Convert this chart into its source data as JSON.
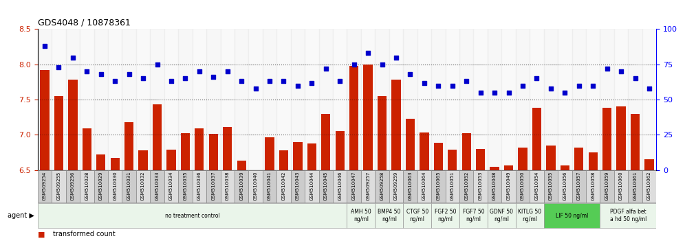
{
  "title": "GDS4048 / 10878361",
  "samples": [
    "GSM509254",
    "GSM509255",
    "GSM509256",
    "GSM510028",
    "GSM510029",
    "GSM510030",
    "GSM510031",
    "GSM510032",
    "GSM510033",
    "GSM510034",
    "GSM510035",
    "GSM510036",
    "GSM510037",
    "GSM510038",
    "GSM510039",
    "GSM510040",
    "GSM510041",
    "GSM510042",
    "GSM510043",
    "GSM510044",
    "GSM510045",
    "GSM510046",
    "GSM510047",
    "GSM509257",
    "GSM509258",
    "GSM509259",
    "GSM510063",
    "GSM510064",
    "GSM510065",
    "GSM510051",
    "GSM510052",
    "GSM510053",
    "GSM510048",
    "GSM510049",
    "GSM510050",
    "GSM510054",
    "GSM510055",
    "GSM510056",
    "GSM510057",
    "GSM510058",
    "GSM510059",
    "GSM510060",
    "GSM510061",
    "GSM510062"
  ],
  "bar_values": [
    7.92,
    7.55,
    7.78,
    7.09,
    6.72,
    6.67,
    7.18,
    6.78,
    7.43,
    6.79,
    7.02,
    7.09,
    7.01,
    7.11,
    6.63,
    6.5,
    6.97,
    6.78,
    6.9,
    6.88,
    7.3,
    7.05,
    7.98,
    8.0,
    7.55,
    7.78,
    7.23,
    7.03,
    6.89,
    6.79,
    7.02,
    6.8,
    6.55,
    6.57,
    6.82,
    7.38,
    6.85,
    6.57,
    6.82,
    6.75,
    7.38,
    7.4,
    7.3,
    6.65
  ],
  "percentile_values": [
    88,
    73,
    80,
    70,
    68,
    63,
    68,
    65,
    75,
    63,
    65,
    70,
    66,
    70,
    63,
    58,
    63,
    63,
    60,
    62,
    72,
    63,
    75,
    83,
    75,
    80,
    68,
    62,
    60,
    60,
    63,
    55,
    55,
    55,
    60,
    65,
    58,
    55,
    60,
    60,
    72,
    70,
    65,
    58
  ],
  "ylim_left": [
    6.5,
    8.5
  ],
  "ylim_right": [
    0,
    100
  ],
  "yticks_left": [
    6.5,
    7.0,
    7.5,
    8.0,
    8.5
  ],
  "yticks_right": [
    0,
    25,
    50,
    75,
    100
  ],
  "bar_color": "#cc2200",
  "dot_color": "#0000cc",
  "agent_groups": [
    {
      "label": "no treatment control",
      "start": 0,
      "end": 22,
      "bg": "#eaf5ea",
      "border": "#999999"
    },
    {
      "label": "AMH 50\nng/ml",
      "start": 22,
      "end": 24,
      "bg": "#eaf5ea",
      "border": "#999999"
    },
    {
      "label": "BMP4 50\nng/ml",
      "start": 24,
      "end": 26,
      "bg": "#eaf5ea",
      "border": "#999999"
    },
    {
      "label": "CTGF 50\nng/ml",
      "start": 26,
      "end": 28,
      "bg": "#eaf5ea",
      "border": "#999999"
    },
    {
      "label": "FGF2 50\nng/ml",
      "start": 28,
      "end": 30,
      "bg": "#eaf5ea",
      "border": "#999999"
    },
    {
      "label": "FGF7 50\nng/ml",
      "start": 30,
      "end": 32,
      "bg": "#eaf5ea",
      "border": "#999999"
    },
    {
      "label": "GDNF 50\nng/ml",
      "start": 32,
      "end": 34,
      "bg": "#eaf5ea",
      "border": "#999999"
    },
    {
      "label": "KITLG 50\nng/ml",
      "start": 34,
      "end": 36,
      "bg": "#eaf5ea",
      "border": "#999999"
    },
    {
      "label": "LIF 50 ng/ml",
      "start": 36,
      "end": 40,
      "bg": "#55cc55",
      "border": "#999999"
    },
    {
      "label": "PDGF alfa bet\na hd 50 ng/ml",
      "start": 40,
      "end": 44,
      "bg": "#eaf5ea",
      "border": "#999999"
    }
  ],
  "grid_color": "#000000",
  "grid_alpha": 0.35,
  "background_color": "#ffffff",
  "tick_bg_color": "#cccccc",
  "tick_bg_color2": "#dddddd"
}
